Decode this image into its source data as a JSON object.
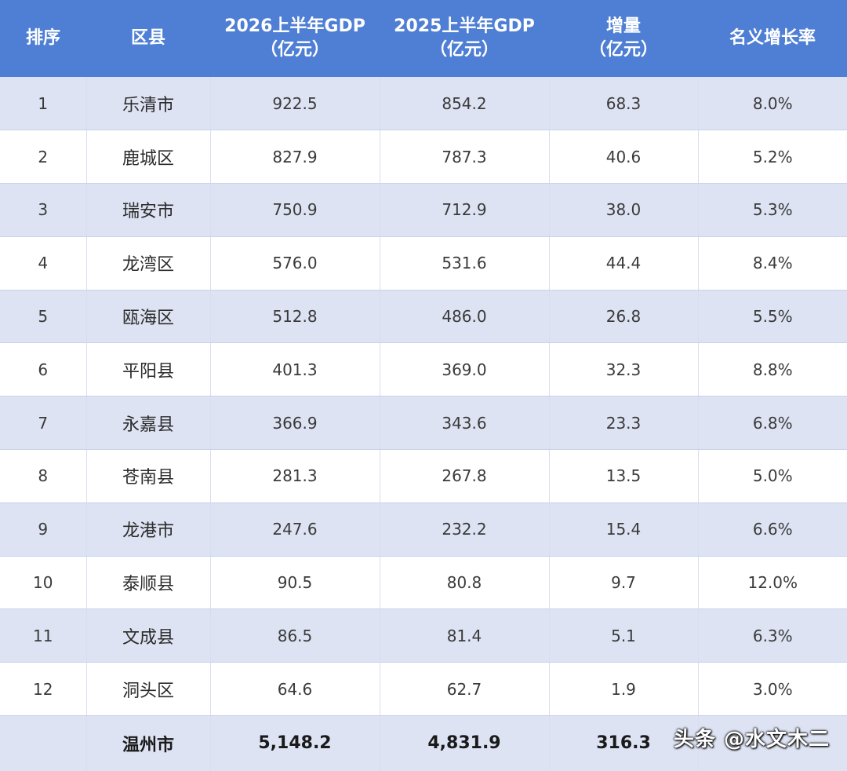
{
  "table": {
    "headers": {
      "rank": [
        "排序"
      ],
      "district": [
        "区县"
      ],
      "gdp_2026": [
        "2026上半年GDP",
        "（亿元）"
      ],
      "gdp_2025": [
        "2025上半年GDP",
        "（亿元）"
      ],
      "increase": [
        "增量",
        "（亿元）"
      ],
      "growth_rate": [
        "名义增长率"
      ]
    },
    "rows": [
      {
        "rank": "1",
        "district": "乐清市",
        "gdp_2026": "922.5",
        "gdp_2025": "854.2",
        "increase": "68.3",
        "growth_rate": "8.0%"
      },
      {
        "rank": "2",
        "district": "鹿城区",
        "gdp_2026": "827.9",
        "gdp_2025": "787.3",
        "increase": "40.6",
        "growth_rate": "5.2%"
      },
      {
        "rank": "3",
        "district": "瑞安市",
        "gdp_2026": "750.9",
        "gdp_2025": "712.9",
        "increase": "38.0",
        "growth_rate": "5.3%"
      },
      {
        "rank": "4",
        "district": "龙湾区",
        "gdp_2026": "576.0",
        "gdp_2025": "531.6",
        "increase": "44.4",
        "growth_rate": "8.4%"
      },
      {
        "rank": "5",
        "district": "瓯海区",
        "gdp_2026": "512.8",
        "gdp_2025": "486.0",
        "increase": "26.8",
        "growth_rate": "5.5%"
      },
      {
        "rank": "6",
        "district": "平阳县",
        "gdp_2026": "401.3",
        "gdp_2025": "369.0",
        "increase": "32.3",
        "growth_rate": "8.8%"
      },
      {
        "rank": "7",
        "district": "永嘉县",
        "gdp_2026": "366.9",
        "gdp_2025": "343.6",
        "increase": "23.3",
        "growth_rate": "6.8%"
      },
      {
        "rank": "8",
        "district": "苍南县",
        "gdp_2026": "281.3",
        "gdp_2025": "267.8",
        "increase": "13.5",
        "growth_rate": "5.0%"
      },
      {
        "rank": "9",
        "district": "龙港市",
        "gdp_2026": "247.6",
        "gdp_2025": "232.2",
        "increase": "15.4",
        "growth_rate": "6.6%"
      },
      {
        "rank": "10",
        "district": "泰顺县",
        "gdp_2026": "90.5",
        "gdp_2025": "80.8",
        "increase": "9.7",
        "growth_rate": "12.0%"
      },
      {
        "rank": "11",
        "district": "文成县",
        "gdp_2026": "86.5",
        "gdp_2025": "81.4",
        "increase": "5.1",
        "growth_rate": "6.3%"
      },
      {
        "rank": "12",
        "district": "洞头区",
        "gdp_2026": "64.6",
        "gdp_2025": "62.7",
        "increase": "1.9",
        "growth_rate": "3.0%"
      }
    ],
    "total": {
      "rank": "",
      "district": "温州市",
      "gdp_2026": "5,148.2",
      "gdp_2025": "4,831.9",
      "increase": "316.3",
      "growth_rate": ""
    }
  },
  "watermark": "头条 @水文木二",
  "colors": {
    "header_bg": "#4f7fd4",
    "header_text": "#ffffff",
    "row_alt_bg": "#dde3f3",
    "row_bg": "#ffffff"
  }
}
